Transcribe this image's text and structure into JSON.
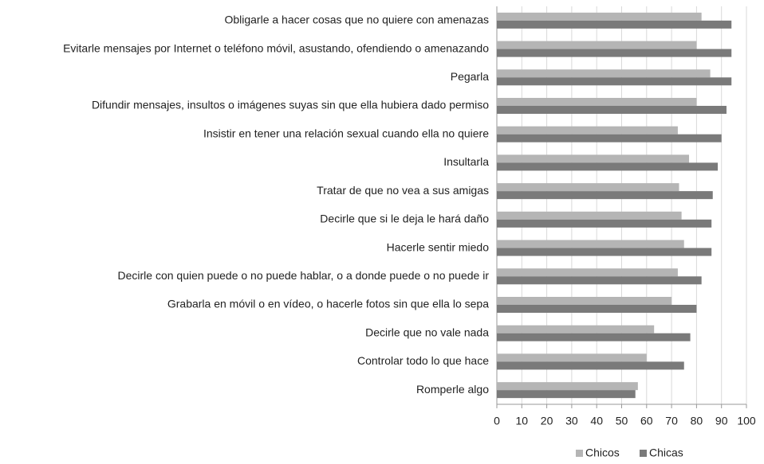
{
  "chart_data": {
    "type": "hbar",
    "categories": [
      "Obligarle a hacer cosas que no quiere con amenazas",
      "Evitarle mensajes por Internet o teléfono móvil, asustando, ofendiendo o amenazando",
      "Pegarla",
      "Difundir mensajes, insultos o imágenes suyas sin que ella hubiera dado permiso",
      "Insistir en tener una relación sexual cuando ella no quiere",
      "Insultarla",
      "Tratar de que no vea a sus amigas",
      "Decirle que si le deja le hará daño",
      "Hacerle sentir miedo",
      "Decirle con quien puede o no puede hablar, o a donde puede o no puede ir",
      "Grabarla en móvil o en vídeo, o hacerle fotos sin que ella lo sepa",
      "Decirle que no vale nada",
      "Controlar todo lo que hace",
      "Romperle algo"
    ],
    "series": [
      {
        "name": "Chicos",
        "color": "#b5b5b5",
        "values": [
          82,
          80,
          85.5,
          80,
          72.5,
          77,
          73,
          74,
          75,
          72.5,
          70,
          63,
          60,
          56.5
        ]
      },
      {
        "name": "Chicas",
        "color": "#7a7a7a",
        "values": [
          94,
          94,
          94,
          92,
          90,
          88.5,
          86.5,
          86,
          86,
          82,
          80,
          77.5,
          75,
          55.5
        ]
      }
    ],
    "xlim": [
      0,
      100
    ],
    "xticks": [
      0,
      10,
      20,
      30,
      40,
      50,
      60,
      70,
      80,
      90,
      100
    ],
    "grid": true,
    "legend": "bottom"
  }
}
